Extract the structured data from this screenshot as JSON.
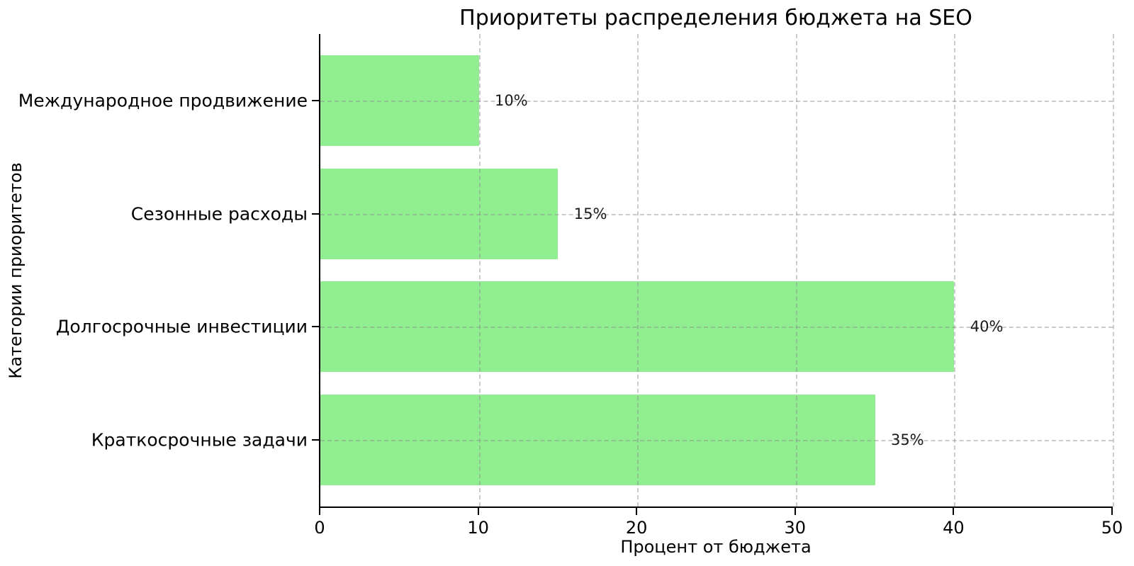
{
  "chart_data": {
    "type": "bar",
    "orientation": "horizontal",
    "title": "Приоритеты распределения бюджета на SEO",
    "xlabel": "Процент от бюджета",
    "ylabel": "Категории приоритетов",
    "categories": [
      "Международное продвижение",
      "Сезонные расходы",
      "Долгосрочные инвестиции",
      "Краткосрочные задачи"
    ],
    "values": [
      10,
      15,
      40,
      35
    ],
    "value_labels": [
      "10%",
      "15%",
      "40%",
      "35%"
    ],
    "xticks": [
      "0",
      "10",
      "20",
      "30",
      "40",
      "50"
    ],
    "xtick_values": [
      0,
      10,
      20,
      30,
      40,
      50
    ],
    "xlim": [
      0,
      50
    ],
    "bar_color": "#90EE90",
    "bar_height_ratio": 0.8,
    "grid": "on",
    "grid_style": "dashed",
    "legend_position": "none"
  }
}
